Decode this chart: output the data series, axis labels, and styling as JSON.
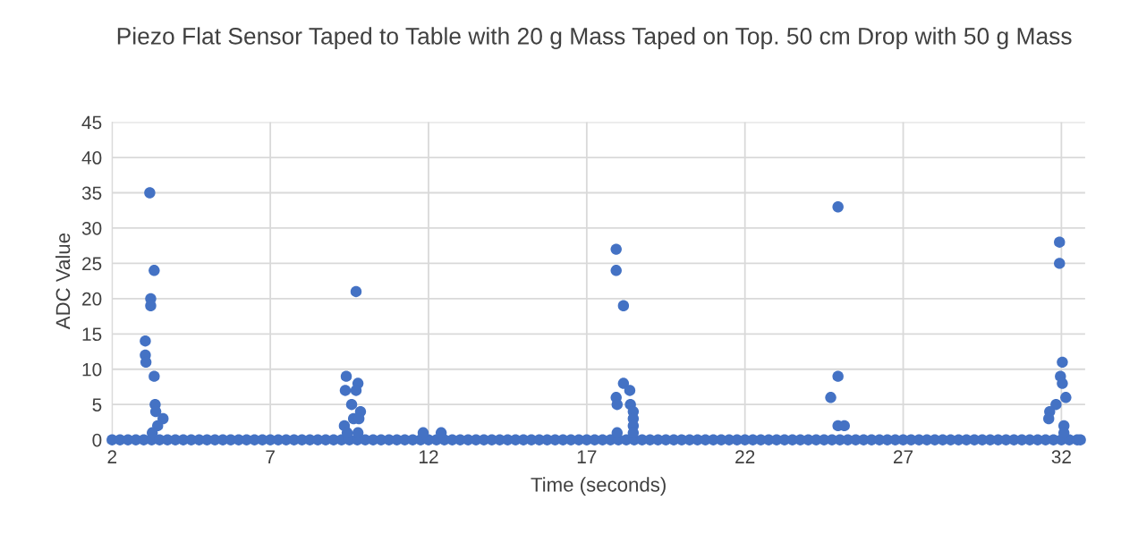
{
  "chart_data": {
    "type": "scatter",
    "title": "Piezo Flat Sensor Taped to Table with 20 g Mass Taped on Top. 50 cm Drop with 50 g Mass",
    "xlabel": "Time (seconds)",
    "ylabel": "ADC Value",
    "x": [
      2,
      2.25,
      2.5,
      2.75,
      3,
      3.25,
      3.5,
      3.75,
      4,
      4.25,
      4.5,
      4.75,
      5,
      5.25,
      5.5,
      5.75,
      6,
      6.25,
      6.5,
      6.75,
      7,
      7.25,
      7.5,
      7.75,
      8,
      8.25,
      8.5,
      8.75,
      9,
      9.25,
      9.5,
      9.75,
      10,
      10.25,
      10.5,
      10.75,
      11,
      11.25,
      11.5,
      11.75,
      12,
      12.25,
      12.5,
      12.75,
      13,
      13.25,
      13.5,
      13.75,
      14,
      14.25,
      14.5,
      14.75,
      15,
      15.25,
      15.5,
      15.75,
      16,
      16.25,
      16.5,
      16.75,
      17,
      17.25,
      17.5,
      17.75,
      18,
      18.25,
      18.5,
      18.75,
      19,
      19.25,
      19.5,
      19.75,
      20,
      20.25,
      20.5,
      20.75,
      21,
      21.25,
      21.5,
      21.75,
      22,
      22.25,
      22.5,
      22.75,
      23,
      23.25,
      23.5,
      23.75,
      24,
      24.25,
      24.5,
      24.75,
      25,
      25.25,
      25.5,
      25.75,
      26,
      26.25,
      26.5,
      26.75,
      27,
      27.25,
      27.5,
      27.75,
      28,
      28.25,
      28.5,
      28.75,
      29,
      29.25,
      29.5,
      29.75,
      30,
      30.25,
      30.5,
      30.75,
      31,
      31.25,
      31.5,
      31.75,
      32,
      32.25,
      32.5,
      32.6,
      3.19,
      3.33,
      3.22,
      3.22,
      3.05,
      3.05,
      3.07,
      3.33,
      3.36,
      3.38,
      3.61,
      3.44,
      3.27,
      9.71,
      9.4,
      9.77,
      9.37,
      9.71,
      9.57,
      9.85,
      9.63,
      9.8,
      9.34,
      9.43,
      9.77,
      11.83,
      12.4,
      17.93,
      17.93,
      18.16,
      18.16,
      18.36,
      17.93,
      17.96,
      18.38,
      18.47,
      18.47,
      18.47,
      17.96,
      18.47,
      24.94,
      24.94,
      24.71,
      24.94,
      25.14,
      31.94,
      31.94,
      32.03,
      31.97,
      32.03,
      32.14,
      31.83,
      31.63,
      31.6,
      32.08,
      32.08
    ],
    "values": [
      0,
      0,
      0,
      0,
      0,
      0,
      0,
      0,
      0,
      0,
      0,
      0,
      0,
      0,
      0,
      0,
      0,
      0,
      0,
      0,
      0,
      0,
      0,
      0,
      0,
      0,
      0,
      0,
      0,
      0,
      0,
      0,
      0,
      0,
      0,
      0,
      0,
      0,
      0,
      0,
      0,
      0,
      0,
      0,
      0,
      0,
      0,
      0,
      0,
      0,
      0,
      0,
      0,
      0,
      0,
      0,
      0,
      0,
      0,
      0,
      0,
      0,
      0,
      0,
      0,
      0,
      0,
      0,
      0,
      0,
      0,
      0,
      0,
      0,
      0,
      0,
      0,
      0,
      0,
      0,
      0,
      0,
      0,
      0,
      0,
      0,
      0,
      0,
      0,
      0,
      0,
      0,
      0,
      0,
      0,
      0,
      0,
      0,
      0,
      0,
      0,
      0,
      0,
      0,
      0,
      0,
      0,
      0,
      0,
      0,
      0,
      0,
      0,
      0,
      0,
      0,
      0,
      0,
      0,
      0,
      0,
      0,
      0,
      0,
      35,
      24,
      20,
      19,
      14,
      12,
      11,
      9,
      5,
      4,
      3,
      2,
      1,
      21,
      9,
      8,
      7,
      7,
      5,
      4,
      3,
      3,
      2,
      1,
      1,
      1,
      1,
      27,
      24,
      19,
      8,
      7,
      6,
      5,
      5,
      4,
      3,
      2,
      1,
      1,
      33,
      9,
      6,
      2,
      2,
      28,
      25,
      11,
      9,
      8,
      6,
      5,
      4,
      3,
      2,
      1
    ],
    "color": "#4472c4",
    "marker": "circle",
    "xlim": [
      2,
      32.75
    ],
    "xticks": [
      2,
      7,
      12,
      17,
      22,
      27,
      32
    ],
    "ylim": [
      0,
      45
    ],
    "yticks": [
      0,
      5,
      10,
      15,
      20,
      25,
      30,
      35,
      40,
      45
    ],
    "grid": true
  }
}
